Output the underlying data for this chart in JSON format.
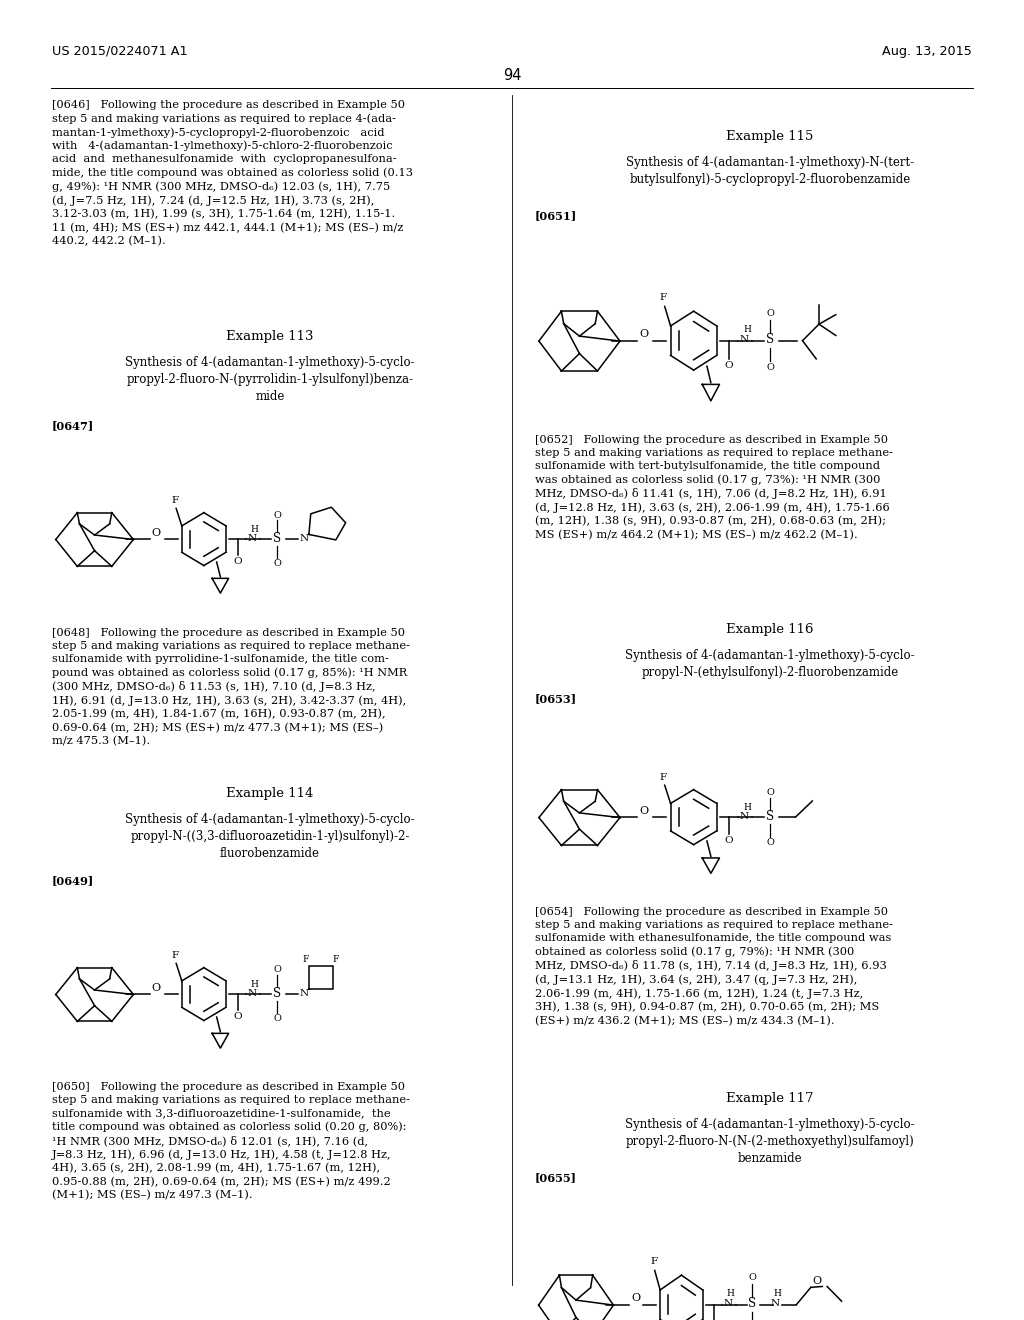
{
  "background_color": "#ffffff",
  "header_left": "US 2015/0224071 A1",
  "header_right": "Aug. 13, 2015",
  "page_number": "94",
  "para_0646": "[0646]   Following the procedure as described in Example 50\nstep 5 and making variations as required to replace 4-(ada-\nmantan-1-ylmethoxy)-5-cyclopropyl-2-fluorobenzoic   acid\nwith   4-(adamantan-1-ylmethoxy)-5-chloro-2-fluorobenzoic\nacid  and  methanesulfonamide  with  cyclopropanesulfona-\nmide, the title compound was obtained as colorless solid (0.13\ng, 49%): ¹H NMR (300 MHz, DMSO-d₆) 12.03 (s, 1H), 7.75\n(d, J=7.5 Hz, 1H), 7.24 (d, J=12.5 Hz, 1H), 3.73 (s, 2H),\n3.12-3.03 (m, 1H), 1.99 (s, 3H), 1.75-1.64 (m, 12H), 1.15-1.\n11 (m, 4H); MS (ES+) mz 442.1, 444.1 (M+1); MS (ES–) m/z\n440.2, 442.2 (M–1).",
  "example_113_title": "Example 113",
  "example_113_synth": "Synthesis of 4-(adamantan-1-ylmethoxy)-5-cyclo-\npropyl-2-fluoro-N-(pyrrolidin-1-ylsulfonyl)benza-\nmide",
  "para_0647": "[0647]",
  "para_0648": "[0648]   Following the procedure as described in Example 50\nstep 5 and making variations as required to replace methane-\nsulfonamide with pyrrolidine-1-sulfonamide, the title com-\npound was obtained as colorless solid (0.17 g, 85%): ¹H NMR\n(300 MHz, DMSO-d₆) δ 11.53 (s, 1H), 7.10 (d, J=8.3 Hz,\n1H), 6.91 (d, J=13.0 Hz, 1H), 3.63 (s, 2H), 3.42-3.37 (m, 4H),\n2.05-1.99 (m, 4H), 1.84-1.67 (m, 16H), 0.93-0.87 (m, 2H),\n0.69-0.64 (m, 2H); MS (ES+) m/z 477.3 (M+1); MS (ES–)\nm/z 475.3 (M–1).",
  "example_114_title": "Example 114",
  "example_114_synth": "Synthesis of 4-(adamantan-1-ylmethoxy)-5-cyclo-\npropyl-N-((3,3-difluoroazetidin-1-yl)sulfonyl)-2-\nfluorobenzamide",
  "para_0649": "[0649]",
  "para_0650": "[0650]   Following the procedure as described in Example 50\nstep 5 and making variations as required to replace methane-\nsulfonamide with 3,3-difluoroazetidine-1-sulfonamide,  the\ntitle compound was obtained as colorless solid (0.20 g, 80%):\n¹H NMR (300 MHz, DMSO-d₆) δ 12.01 (s, 1H), 7.16 (d,\nJ=8.3 Hz, 1H), 6.96 (d, J=13.0 Hz, 1H), 4.58 (t, J=12.8 Hz,\n4H), 3.65 (s, 2H), 2.08-1.99 (m, 4H), 1.75-1.67 (m, 12H),\n0.95-0.88 (m, 2H), 0.69-0.64 (m, 2H); MS (ES+) m/z 499.2\n(M+1); MS (ES–) m/z 497.3 (M–1).",
  "example_115_title": "Example 115",
  "example_115_synth": "Synthesis of 4-(adamantan-1-ylmethoxy)-N-(tert-\nbutylsulfonyl)-5-cyclopropyl-2-fluorobenzamide",
  "para_0651": "[0651]",
  "para_0652": "[0652]   Following the procedure as described in Example 50\nstep 5 and making variations as required to replace methane-\nsulfonamide with tert-butylsulfonamide, the title compound\nwas obtained as colorless solid (0.17 g, 73%): ¹H NMR (300\nMHz, DMSO-d₆) δ 11.41 (s, 1H), 7.06 (d, J=8.2 Hz, 1H), 6.91\n(d, J=12.8 Hz, 1H), 3.63 (s, 2H), 2.06-1.99 (m, 4H), 1.75-1.66\n(m, 12H), 1.38 (s, 9H), 0.93-0.87 (m, 2H), 0.68-0.63 (m, 2H);\nMS (ES+) m/z 464.2 (M+1); MS (ES–) m/z 462.2 (M–1).",
  "example_116_title": "Example 116",
  "example_116_synth": "Synthesis of 4-(adamantan-1-ylmethoxy)-5-cyclo-\npropyl-N-(ethylsulfonyl)-2-fluorobenzamide",
  "para_0653": "[0653]",
  "para_0654": "[0654]   Following the procedure as described in Example 50\nstep 5 and making variations as required to replace methane-\nsulfonamide with ethanesulfonamide, the title compound was\nobtained as colorless solid (0.17 g, 79%): ¹H NMR (300\nMHz, DMSO-d₆) δ 11.78 (s, 1H), 7.14 (d, J=8.3 Hz, 1H), 6.93\n(d, J=13.1 Hz, 1H), 3.64 (s, 2H), 3.47 (q, J=7.3 Hz, 2H),\n2.06-1.99 (m, 4H), 1.75-1.66 (m, 12H), 1.24 (t, J=7.3 Hz,\n3H), 1.38 (s, 9H), 0.94-0.87 (m, 2H), 0.70-0.65 (m, 2H); MS\n(ES+) m/z 436.2 (M+1); MS (ES–) m/z 434.3 (M–1).",
  "example_117_title": "Example 117",
  "example_117_synth": "Synthesis of 4-(adamantan-1-ylmethoxy)-5-cyclo-\npropyl-2-fluoro-N-(N-(2-methoxyethyl)sulfamoyl)\nbenzamide",
  "para_0655": "[0655]"
}
